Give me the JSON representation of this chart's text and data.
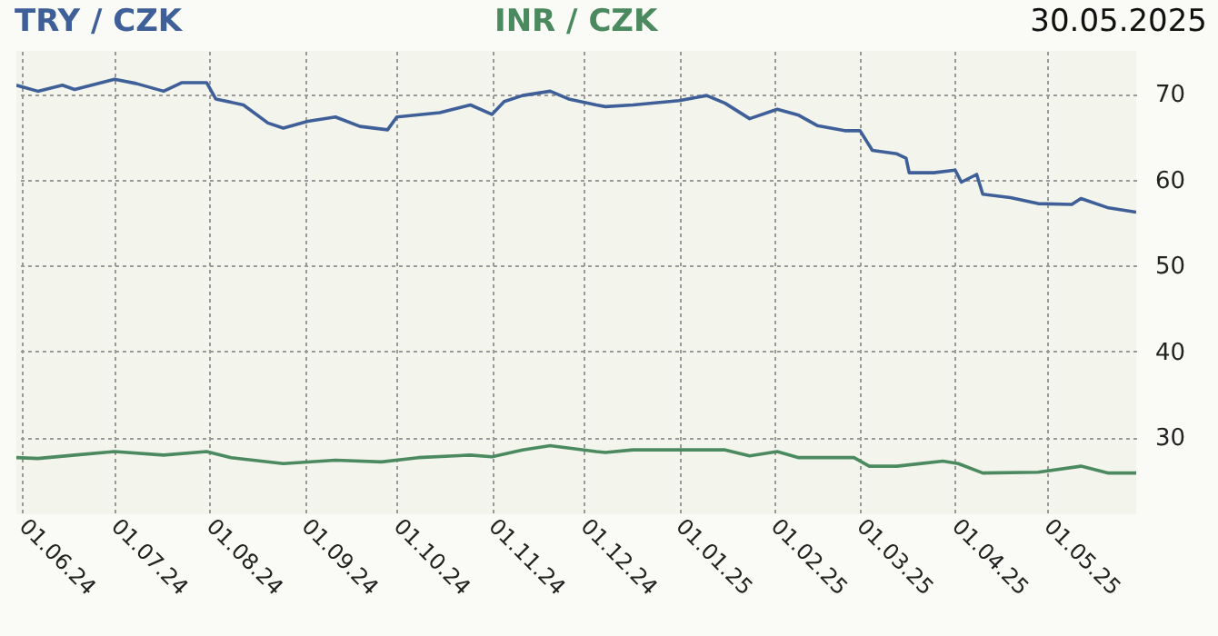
{
  "chart_data": {
    "type": "line",
    "series": [
      {
        "name": "TRY / CZK",
        "color": "#3f5f98",
        "x": [
          "2024-05-30",
          "2024-06-06",
          "2024-06-14",
          "2024-06-18",
          "2024-07-01",
          "2024-07-08",
          "2024-07-17",
          "2024-07-23",
          "2024-07-31",
          "2024-08-03",
          "2024-08-12",
          "2024-08-20",
          "2024-08-25",
          "2024-09-02",
          "2024-09-11",
          "2024-09-19",
          "2024-09-28",
          "2024-10-01",
          "2024-10-15",
          "2024-10-25",
          "2024-11-01",
          "2024-11-05",
          "2024-11-11",
          "2024-11-20",
          "2024-11-26",
          "2024-12-05",
          "2024-12-08",
          "2024-12-17",
          "2025-01-01",
          "2025-01-10",
          "2025-01-16",
          "2025-01-24",
          "2025-02-02",
          "2025-02-09",
          "2025-02-15",
          "2025-02-24",
          "2025-03-01",
          "2025-03-05",
          "2025-03-13",
          "2025-03-16",
          "2025-03-17",
          "2025-03-25",
          "2025-04-01",
          "2025-04-03",
          "2025-04-08",
          "2025-04-10",
          "2025-04-19",
          "2025-04-28",
          "2025-05-09",
          "2025-05-12",
          "2025-05-21",
          "2025-05-30"
        ],
        "values": [
          71.0,
          70.3,
          71.0,
          70.5,
          71.7,
          71.2,
          70.3,
          71.3,
          71.3,
          69.4,
          68.7,
          66.6,
          66.0,
          66.8,
          67.3,
          66.2,
          65.8,
          67.3,
          67.8,
          68.7,
          67.6,
          69.1,
          69.8,
          70.3,
          69.4,
          68.7,
          68.5,
          68.7,
          69.2,
          69.8,
          68.9,
          67.1,
          68.2,
          67.5,
          66.3,
          65.7,
          65.7,
          63.4,
          63.0,
          62.5,
          60.8,
          60.8,
          61.1,
          59.7,
          60.6,
          58.3,
          57.9,
          57.2,
          57.1,
          57.8,
          56.7,
          56.2
        ]
      },
      {
        "name": "INR / CZK",
        "color": "#4a8a5e",
        "x": [
          "2024-05-30",
          "2024-06-06",
          "2024-06-18",
          "2024-07-01",
          "2024-07-17",
          "2024-07-31",
          "2024-08-08",
          "2024-08-25",
          "2024-09-11",
          "2024-09-26",
          "2024-10-08",
          "2024-10-25",
          "2024-11-01",
          "2024-11-11",
          "2024-11-20",
          "2024-12-05",
          "2024-12-08",
          "2024-12-17",
          "2025-01-01",
          "2025-01-16",
          "2025-01-24",
          "2025-02-02",
          "2025-02-09",
          "2025-02-27",
          "2025-03-04",
          "2025-03-13",
          "2025-03-28",
          "2025-04-02",
          "2025-04-10",
          "2025-04-28",
          "2025-05-12",
          "2025-05-21",
          "2025-05-30"
        ],
        "values": [
          27.6,
          27.5,
          27.9,
          28.3,
          27.9,
          28.3,
          27.6,
          26.9,
          27.3,
          27.1,
          27.6,
          27.9,
          27.7,
          28.5,
          29.0,
          28.3,
          28.2,
          28.5,
          28.5,
          28.5,
          27.8,
          28.3,
          27.6,
          27.6,
          26.6,
          26.6,
          27.2,
          26.9,
          25.8,
          25.9,
          26.6,
          25.8,
          25.8
        ]
      }
    ],
    "xlim": [
      "2024-05-30",
      "2025-05-30"
    ],
    "xticks": [
      {
        "value": "2024-06-01",
        "label": "01.06.24"
      },
      {
        "value": "2024-07-01",
        "label": "01.07.24"
      },
      {
        "value": "2024-08-01",
        "label": "01.08.24"
      },
      {
        "value": "2024-09-01",
        "label": "01.09.24"
      },
      {
        "value": "2024-10-01",
        "label": "01.10.24"
      },
      {
        "value": "2024-11-01",
        "label": "01.11.24"
      },
      {
        "value": "2024-12-01",
        "label": "01.12.24"
      },
      {
        "value": "2025-01-01",
        "label": "01.01.25"
      },
      {
        "value": "2025-02-01",
        "label": "01.02.25"
      },
      {
        "value": "2025-03-01",
        "label": "01.03.25"
      },
      {
        "value": "2025-04-01",
        "label": "01.04.25"
      },
      {
        "value": "2025-05-01",
        "label": "01.05.25"
      }
    ],
    "ylim": [
      21,
      75
    ],
    "yticks": [
      30,
      40,
      50,
      60,
      70
    ],
    "grid": true,
    "line_style": "solid",
    "marker": "none",
    "annotations": [
      "30.05.2025"
    ]
  }
}
